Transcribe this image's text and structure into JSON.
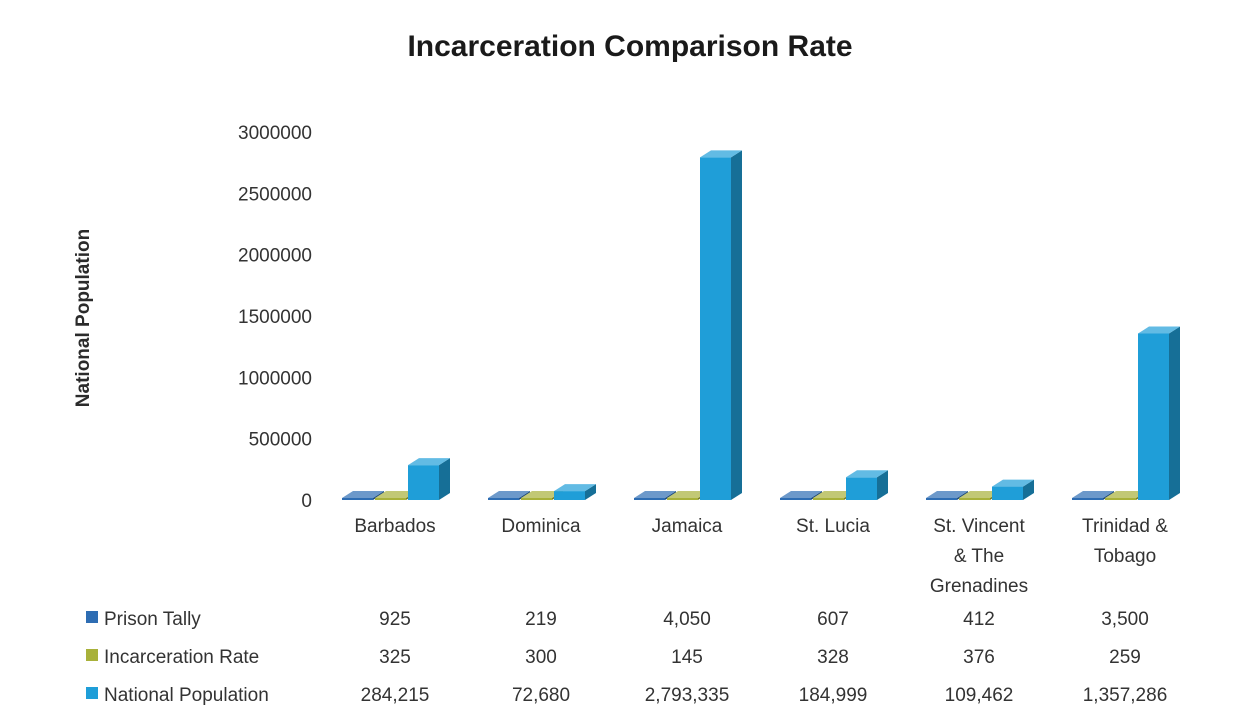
{
  "chart_data": {
    "type": "bar",
    "title": "Incarceration Comparison Rate",
    "ylabel": "National Population",
    "xlabel": "",
    "categories": [
      "Barbados",
      "Dominica",
      "Jamaica",
      "St. Lucia",
      "St. Vincent & The Grenadines",
      "Trinidad & Tobago"
    ],
    "category_lines": [
      [
        "Barbados"
      ],
      [
        "Dominica"
      ],
      [
        "Jamaica"
      ],
      [
        "St. Lucia"
      ],
      [
        "St. Vincent",
        "& The",
        "Grenadines"
      ],
      [
        "Trinidad &",
        "Tobago"
      ]
    ],
    "ylim": [
      0,
      3000000
    ],
    "yticks": [
      "0",
      "500000",
      "1000000",
      "1500000",
      "2000000",
      "2500000",
      "3000000"
    ],
    "series": [
      {
        "name": "Prison Tally",
        "color": "#2e6db3",
        "values": [
          925,
          219,
          4050,
          607,
          412,
          3500
        ],
        "labels": [
          "925",
          "219",
          "4,050",
          "607",
          "412",
          "3,500"
        ]
      },
      {
        "name": "Incarceration Rate",
        "color": "#a8b13a",
        "values": [
          325,
          300,
          145,
          328,
          376,
          259
        ],
        "labels": [
          "325",
          "300",
          "145",
          "328",
          "376",
          "259"
        ]
      },
      {
        "name": "National Population",
        "color": "#1f9ed8",
        "values": [
          284215,
          72680,
          2793335,
          184999,
          109462,
          1357286
        ],
        "labels": [
          "284,215",
          "72,680",
          "2,793,335",
          "184,999",
          "109,462",
          "1,357,286"
        ]
      }
    ],
    "legend": "bottom data table",
    "style": "3d column",
    "grid": false
  }
}
